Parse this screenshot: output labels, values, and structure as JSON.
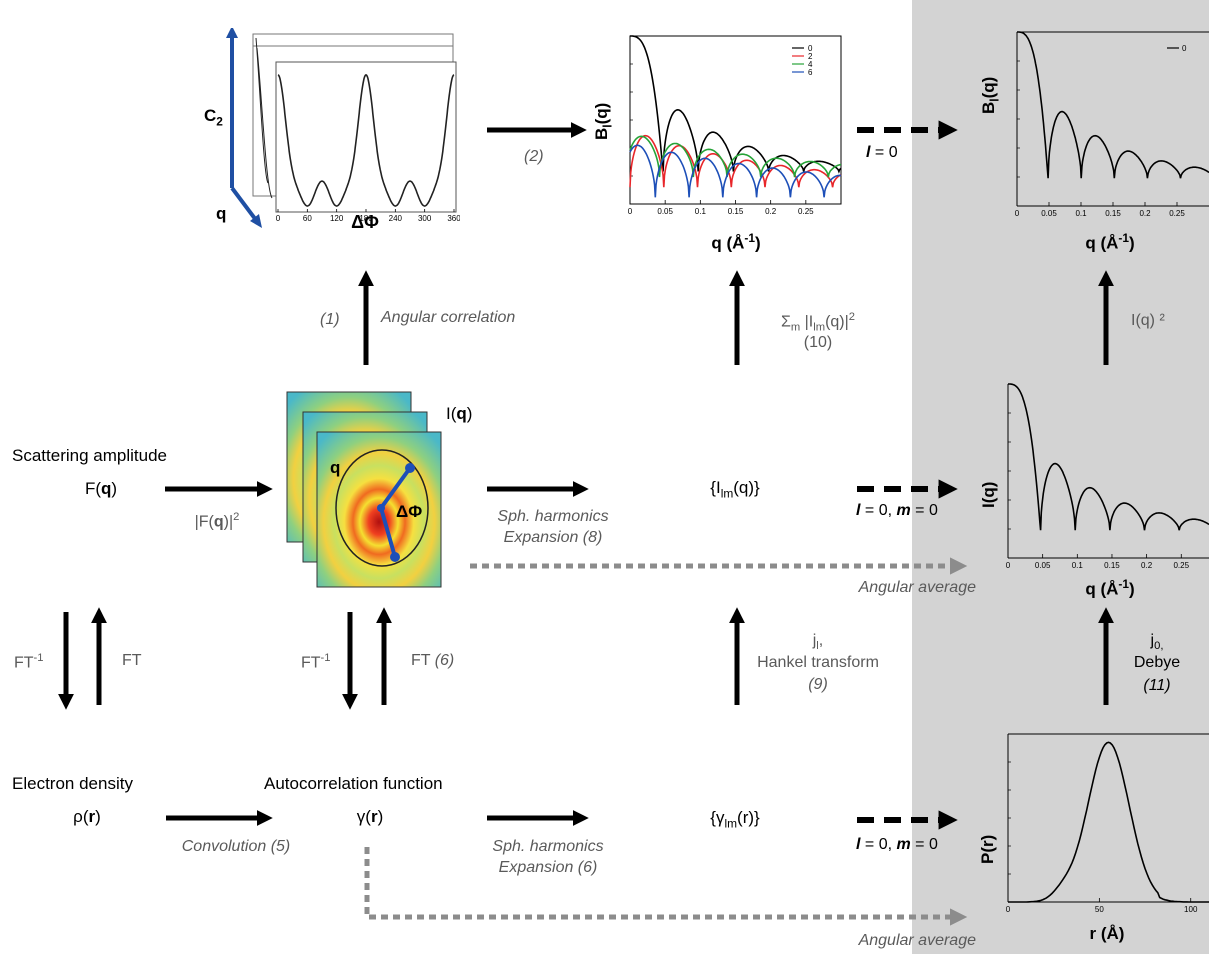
{
  "colors": {
    "shade": "#d3d3d3",
    "arrow": "#000000",
    "dashed_gray": "#8c8c8c",
    "axis_blue": "#1f4fa3",
    "series": [
      "#000000",
      "#e8262a",
      "#27a338",
      "#1d4fb8"
    ]
  },
  "labels": {
    "scattering_amplitude": "Scattering amplitude",
    "F_q": "F(q)",
    "I_q_label": "I(q)",
    "Ilm_q": "{Ilm(q)}",
    "electron_density": "Electron density",
    "rho_r": "ρ(r)",
    "autocorrelation": "Autocorrelation function",
    "gamma_r": "γ(r)",
    "gamma_lm": "{γlm(r)}",
    "C2": "C2",
    "q_axis": "q",
    "delta_phi": "ΔΦ",
    "q_in_pattern": "q",
    "dphi_in_pattern": "ΔΦ"
  },
  "operations": {
    "step2": "(2)",
    "step1": "(1)",
    "angular_correlation": "Angular correlation",
    "sum_m": "Σm |Ilm(q)|²",
    "step10": "(10)",
    "Iq2": "I(q) ²",
    "F_squared": "|F(q)|²",
    "sph_exp_8_a": "Sph. harmonics",
    "sph_exp_8_b": "Expansion (8)",
    "angular_average_1": "Angular average",
    "ft_inv_1": "FT-1",
    "ft_1": "FT",
    "ft_inv_2": "FT-1",
    "ft_6": "FT",
    "ft_6_num": "(6)",
    "jl": "jl,",
    "hankel": "Hankel transform",
    "step9": "(9)",
    "j0": "j0,",
    "debye": "Debye",
    "step11": "(11)",
    "convolution": "Convolution (5)",
    "sph_exp_6_a": "Sph. harmonics",
    "sph_exp_6_b": "Expansion (6)",
    "angular_average_2": "Angular average",
    "l0_top": "l = 0",
    "l0m0_mid": "l = 0, m = 0",
    "l0m0_bot": "l = 0, m = 0"
  },
  "chart_data": [
    {
      "name": "C2",
      "type": "line",
      "xlabel": "ΔΦ",
      "ylabel": "C2",
      "x_ticks": [
        "0",
        "60",
        "120",
        "180",
        "240",
        "300",
        "360"
      ],
      "xlim": [
        0,
        360
      ]
    },
    {
      "name": "Bl_middle",
      "type": "line",
      "xlabel": "q (Å-1)",
      "ylabel": "Bl(q)",
      "x_ticks": [
        "0",
        "0.05",
        "0.1",
        "0.15",
        "0.2",
        "0.25"
      ],
      "xlim": [
        0,
        0.3
      ],
      "legend": [
        "0",
        "2",
        "4",
        "6"
      ],
      "legend_position": "top-right"
    },
    {
      "name": "Bl_right",
      "type": "line",
      "xlabel": "q (Å-1)",
      "ylabel": "Bl(q)",
      "x_ticks": [
        "0",
        "0.05",
        "0.1",
        "0.15",
        "0.2",
        "0.25"
      ],
      "xlim": [
        0,
        0.3
      ],
      "legend": [
        "0"
      ],
      "legend_position": "top-right"
    },
    {
      "name": "I_q",
      "type": "line",
      "xlabel": "q (Å-1)",
      "ylabel": "I(q)",
      "x_ticks": [
        "0",
        "0.05",
        "0.1",
        "0.15",
        "0.2",
        "0.25"
      ],
      "xlim": [
        0,
        0.3
      ]
    },
    {
      "name": "P_r",
      "type": "line",
      "xlabel": "r (Å)",
      "ylabel": "P(r)",
      "x_ticks": [
        "0",
        "50",
        "100"
      ],
      "xlim": [
        0,
        110
      ]
    }
  ]
}
